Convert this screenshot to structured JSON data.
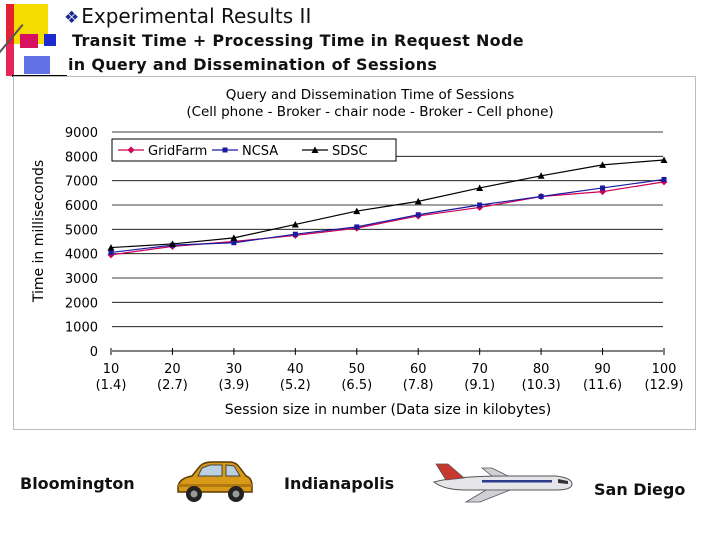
{
  "slide": {
    "title": "Experimental Results II",
    "bullet_icon": "diamond-bullet-icon",
    "subtitle_line1": "Transit Time + Processing Time in Request Node",
    "subtitle_line2": "in Query and Dissemination of Sessions"
  },
  "chart_data": {
    "type": "line",
    "title": "Query and Dissemination Time of Sessions",
    "subtitle": "(Cell phone - Broker - chair node - Broker - Cell phone)",
    "xlabel": "Session size in number (Data size in kilobytes)",
    "ylabel": "Time in milliseconds",
    "categories": [
      "10",
      "20",
      "30",
      "40",
      "50",
      "60",
      "70",
      "80",
      "90",
      "100"
    ],
    "category_sublabels": [
      "(1.4)",
      "(2.7)",
      "(3.9)",
      "(5.2)",
      "(6.5)",
      "(7.8)",
      "(9.1)",
      "(10.3)",
      "(11.6)",
      "(12.9)"
    ],
    "ylim": [
      0,
      9000
    ],
    "yticks": [
      "0",
      "1000",
      "2000",
      "3000",
      "4000",
      "5000",
      "6000",
      "7000",
      "8000",
      "9000"
    ],
    "grid": true,
    "legend_position": "top-left",
    "series": [
      {
        "name": "GridFarm",
        "color": "#cc0055",
        "marker": "diamond",
        "values": [
          3950,
          4300,
          4500,
          4750,
          5050,
          5550,
          5900,
          6350,
          6550,
          6950
        ]
      },
      {
        "name": "NCSA",
        "color": "#1a1aa0",
        "marker": "square",
        "values": [
          4050,
          4350,
          4450,
          4800,
          5100,
          5600,
          6000,
          6350,
          6700,
          7050
        ]
      },
      {
        "name": "SDSC",
        "color": "#000000",
        "marker": "triangle",
        "values": [
          4250,
          4400,
          4650,
          5200,
          5750,
          6150,
          6700,
          7200,
          7650,
          7850
        ]
      }
    ]
  },
  "route": {
    "origin": "Bloomington",
    "via": "Indianapolis",
    "destination": "San Diego",
    "car_icon": "car-icon",
    "plane_icon": "airplane-icon"
  }
}
